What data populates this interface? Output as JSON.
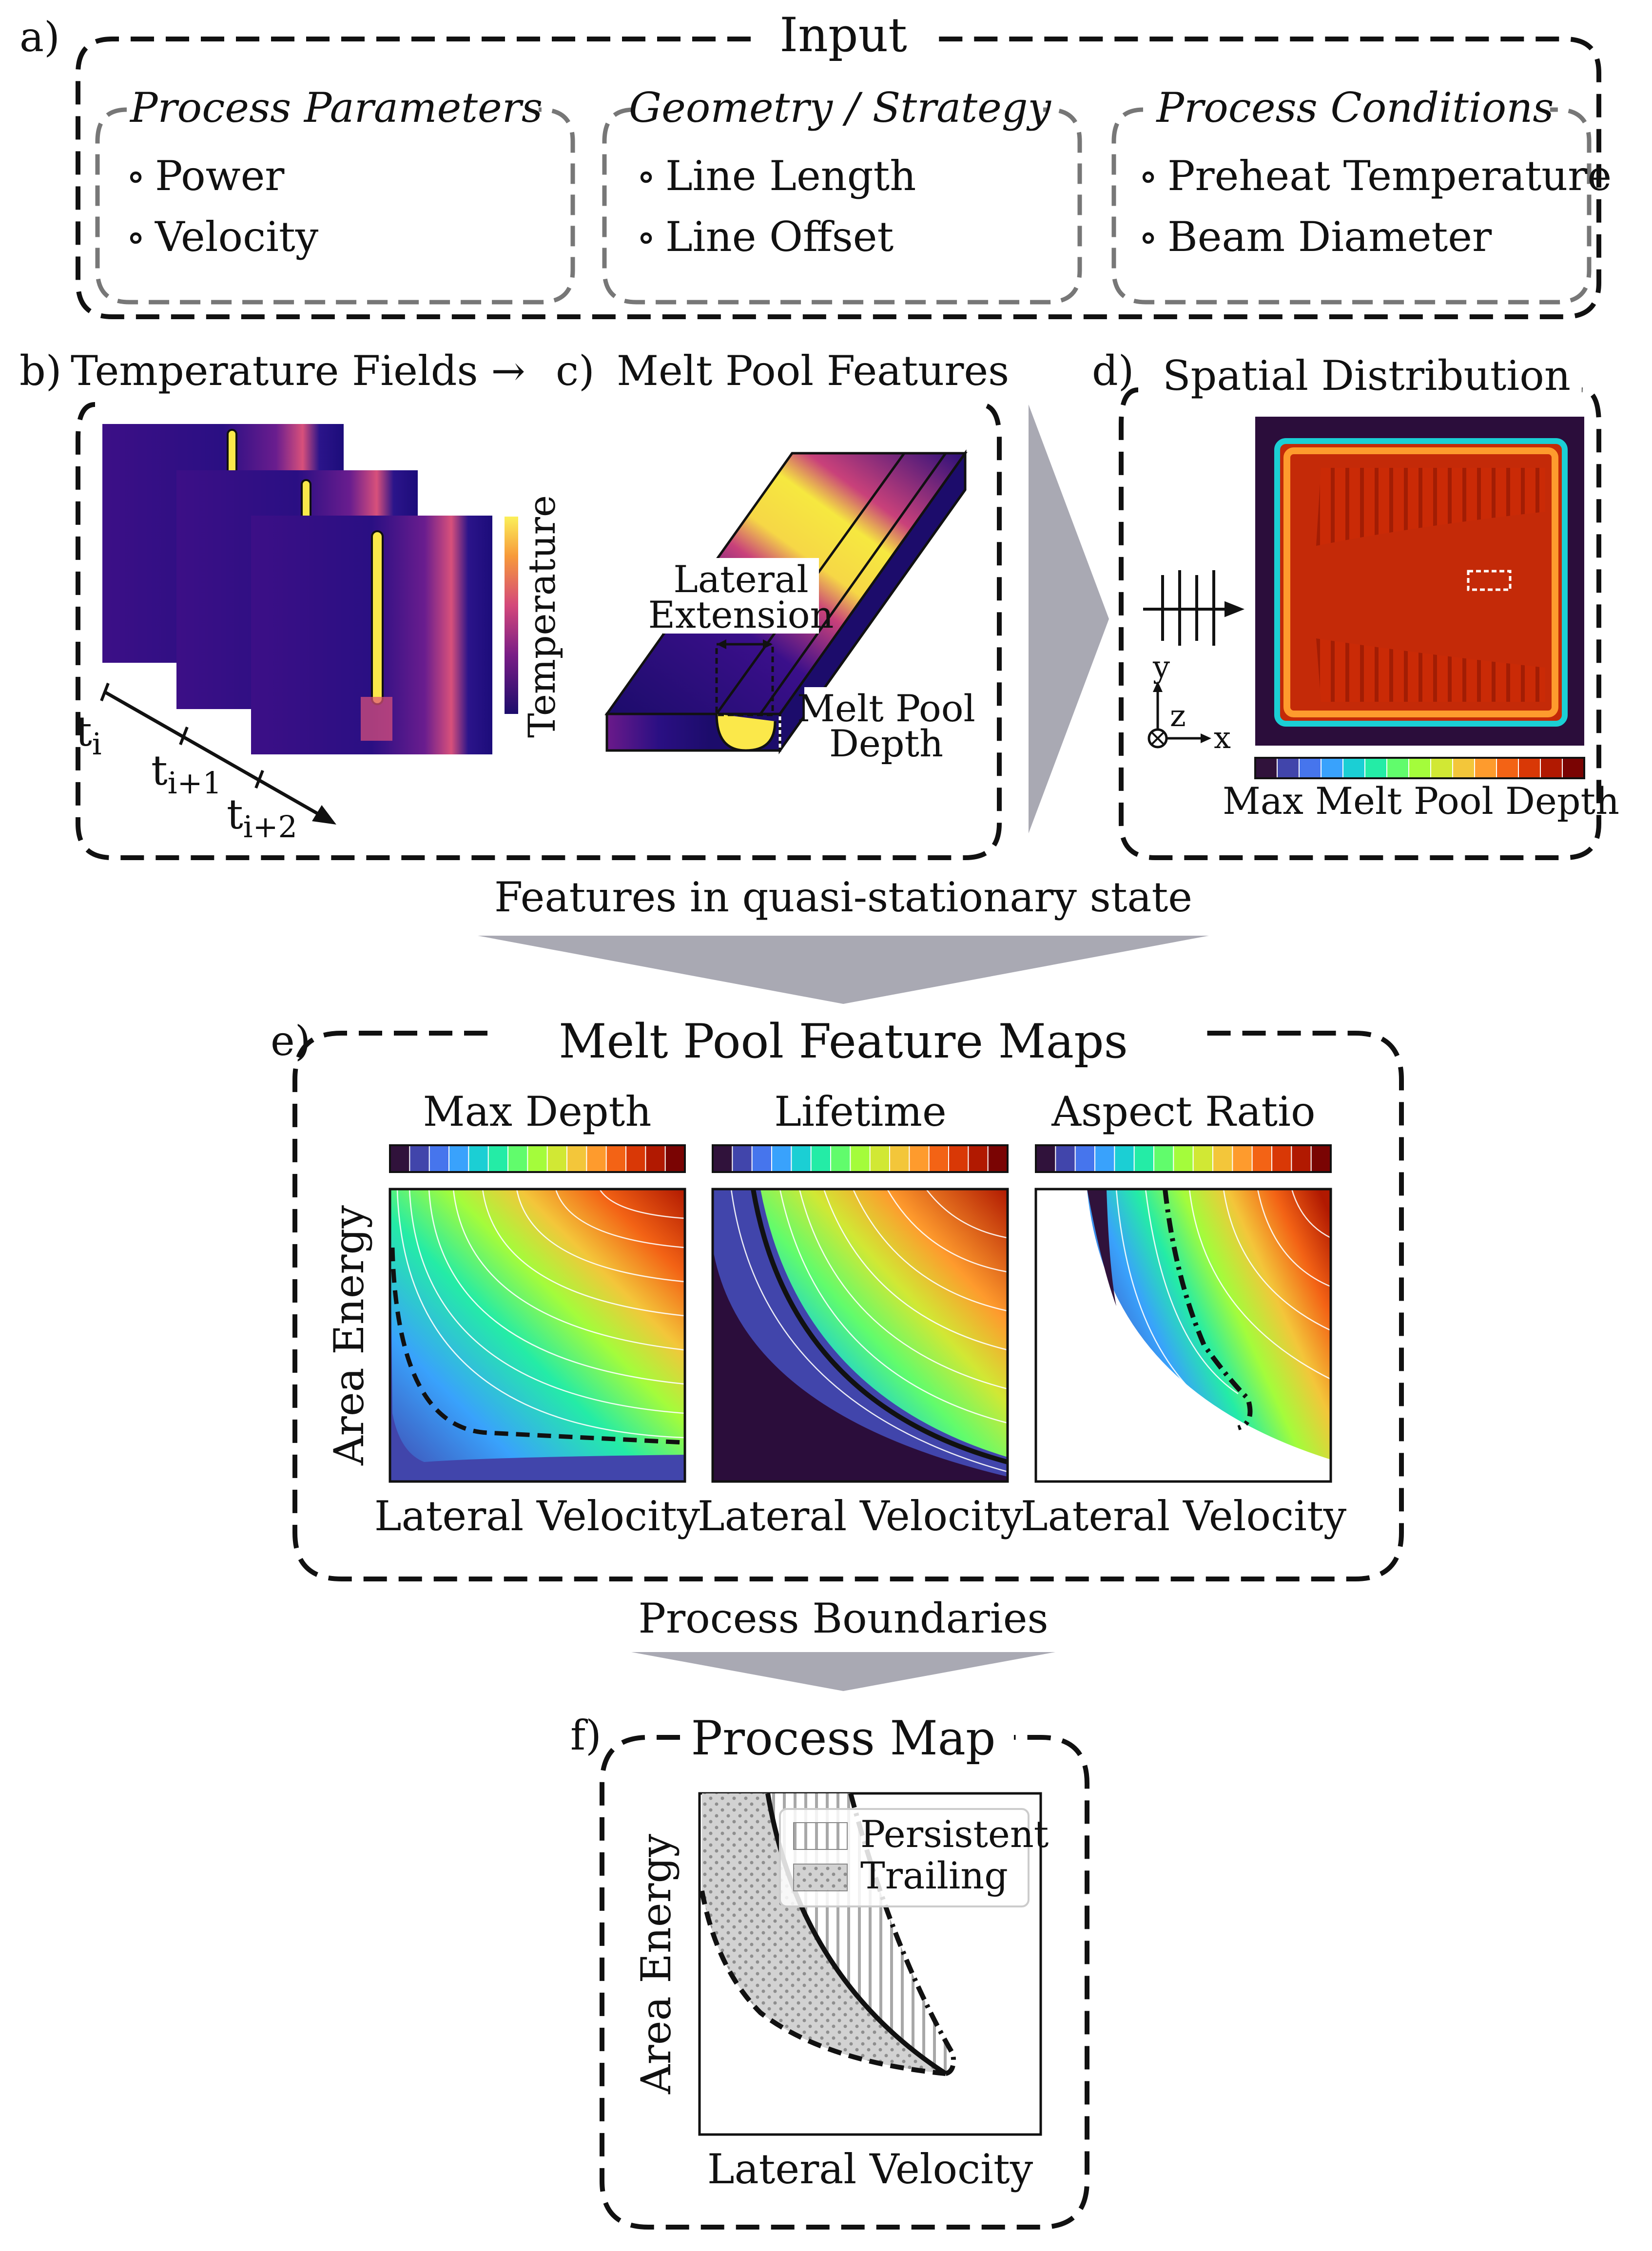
{
  "panel_a": {
    "letter": "a)",
    "title": "Input",
    "groups": [
      {
        "title": "Process Parameters",
        "items": [
          "Power",
          "Velocity"
        ]
      },
      {
        "title": "Geometry / Strategy",
        "items": [
          "Line Length",
          "Line Offset"
        ]
      },
      {
        "title": "Process Conditions",
        "items": [
          "Preheat Temperature",
          "Beam Diameter"
        ]
      }
    ],
    "bullet": "∘"
  },
  "panel_b": {
    "letter": "b)",
    "title": "Temperature Fields →",
    "colorbar_label": "Temperature",
    "time_labels": [
      {
        "base": "t",
        "sub": "i"
      },
      {
        "base": "t",
        "sub": "i+1"
      },
      {
        "base": "t",
        "sub": "i+2"
      }
    ]
  },
  "panel_c": {
    "letter": "c)",
    "title": "Melt Pool Features",
    "lateral_extension_label": [
      "Lateral",
      "Extension"
    ],
    "depth_label": [
      "Melt Pool",
      "Depth"
    ]
  },
  "panel_d": {
    "letter": "d)",
    "title": "Spatial Distribution",
    "axes": {
      "y": "y",
      "z": "z",
      "x": "x"
    },
    "colorbar_label": "Max Melt Pool Depth"
  },
  "transition_1": "Features in quasi-stationary state",
  "panel_e": {
    "letter": "e)",
    "title": "Melt Pool Feature Maps",
    "ylabel": "Area Energy",
    "maps": [
      {
        "title": "Max Depth",
        "xlabel": "Lateral Velocity"
      },
      {
        "title": "Lifetime",
        "xlabel": "Lateral Velocity"
      },
      {
        "title": "Aspect Ratio",
        "xlabel": "Lateral Velocity"
      }
    ]
  },
  "transition_2": "Process Boundaries",
  "panel_f": {
    "letter": "f)",
    "title": "Process Map",
    "ylabel": "Area Energy",
    "xlabel": "Lateral Velocity",
    "legend": [
      "Persistent",
      "Trailing"
    ]
  },
  "colors": {
    "inferno_dark": "#1c0c6b",
    "inferno_mid": "#c9417a",
    "inferno_hot": "#f6d746",
    "turbo_bg": "#2b0d3b",
    "turbo_red": "#c42a08",
    "arrow_gray": "#a9a9b3",
    "dash_gray": "#7a7a7a"
  },
  "turbo_bins": [
    "#30123b",
    "#4145ab",
    "#4675ed",
    "#39a2fc",
    "#1bcfd4",
    "#24eca6",
    "#61fc6c",
    "#a4fc3b",
    "#d1e834",
    "#f3c63a",
    "#fe9b2d",
    "#f36315",
    "#d93806",
    "#b11901",
    "#7a0403"
  ]
}
